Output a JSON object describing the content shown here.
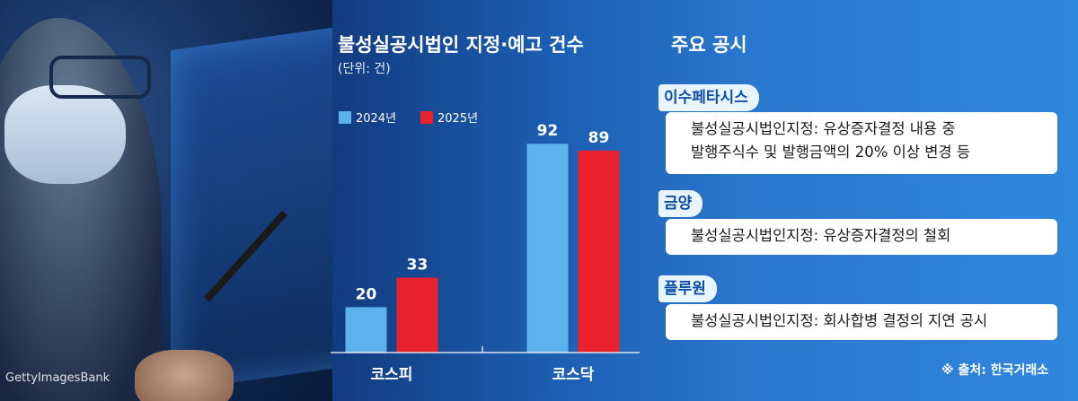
{
  "photo": {
    "credit": "GettyImagesBank"
  },
  "chart_data": {
    "type": "bar",
    "title": "불성실공시법인 지정·예고 건수",
    "unit": "(단위: 건)",
    "categories": [
      "코스피",
      "코스닥"
    ],
    "series": [
      {
        "name": "2024년",
        "values": [
          20,
          92
        ],
        "color": "#5cb3ec"
      },
      {
        "name": "2025년",
        "values": [
          33,
          89
        ],
        "color": "#e8212c"
      }
    ],
    "ylim": [
      0,
      100
    ],
    "grid": false,
    "legend": "top-left"
  },
  "disclosures": {
    "title": "주요 공시",
    "items": [
      {
        "company": "이수페타시스",
        "lines": [
          "불성실공시법인지정: 유상증자결정 내용 중",
          "발행주식수 및 발행금액의 20% 이상 변경 등"
        ]
      },
      {
        "company": "금양",
        "lines": [
          "불성실공시법인지정: 유상증자결정의 철회"
        ]
      },
      {
        "company": "플루원",
        "lines": [
          "불성실공시법인지정: 회사합병 결정의 지연 공시"
        ]
      }
    ]
  },
  "source": "※ 출처: 한국거래소"
}
